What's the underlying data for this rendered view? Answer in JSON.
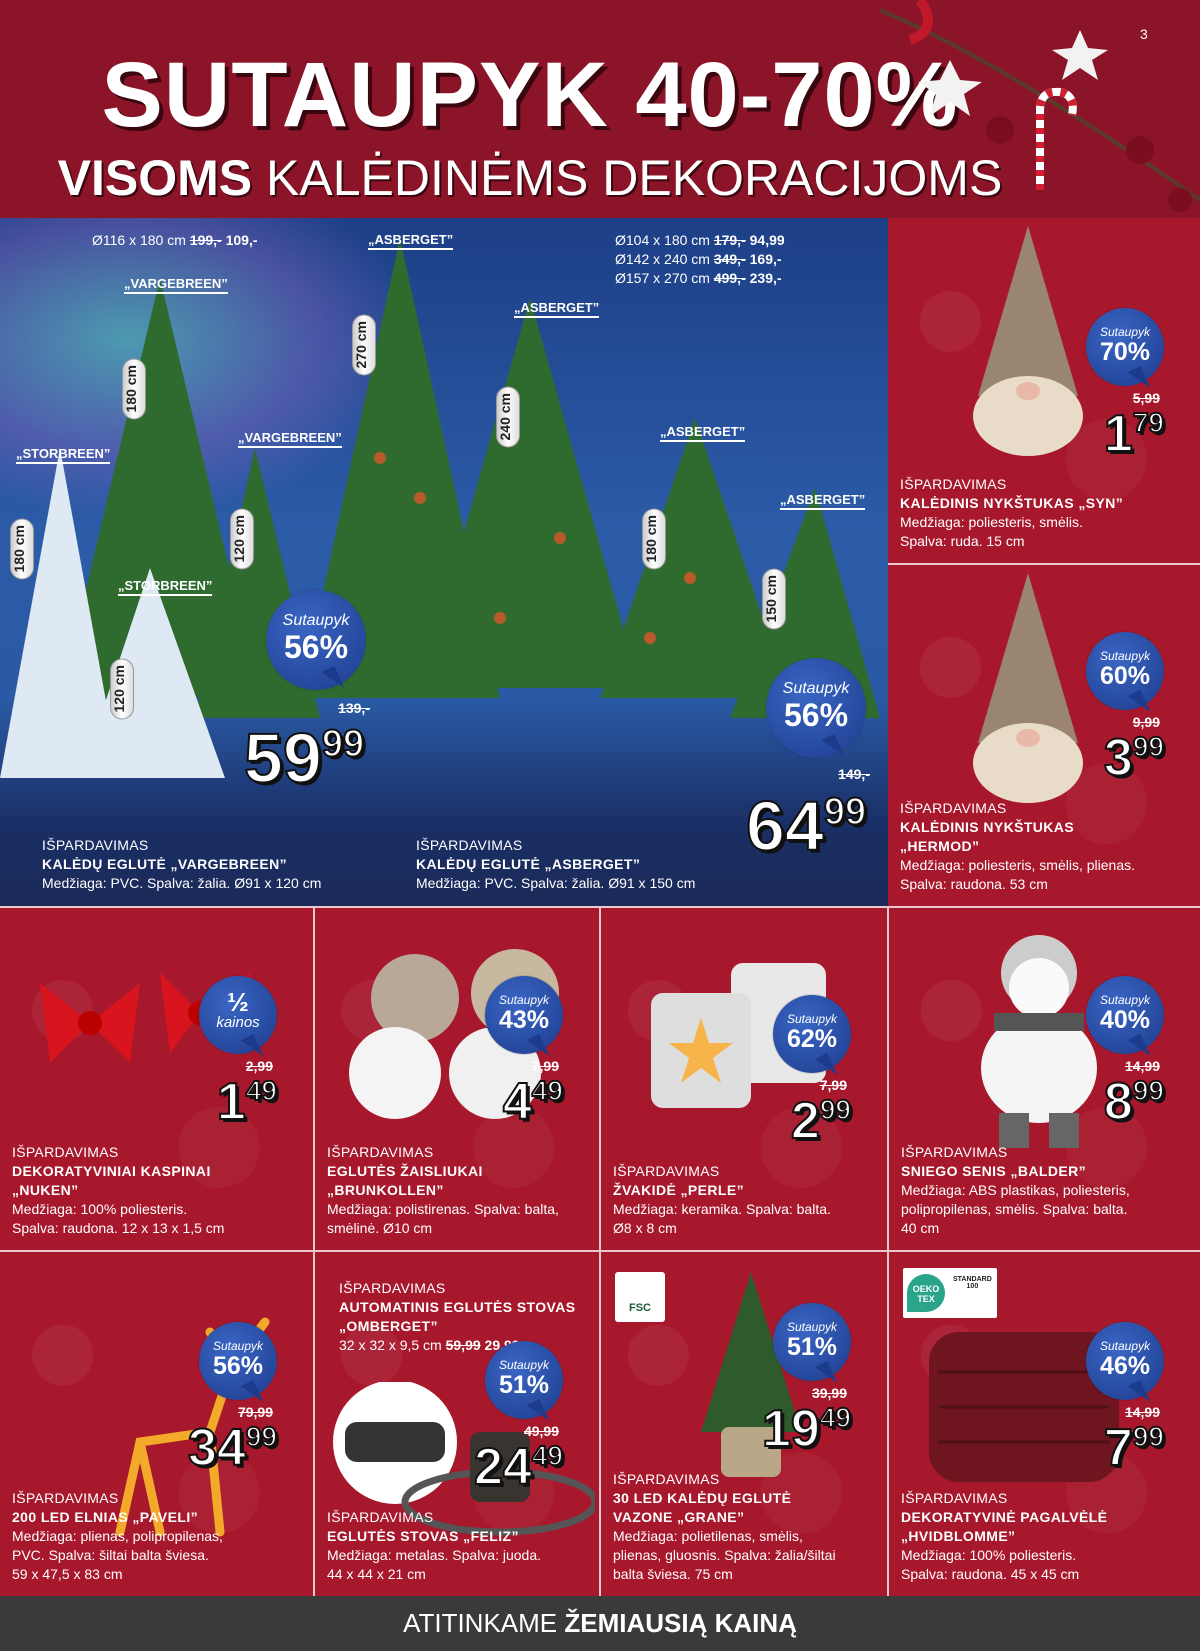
{
  "page_number": "3",
  "header": {
    "title": "SUTAUPYK 40-70%",
    "subtitle_bold": "VISOMS",
    "subtitle_rest": " KALĖDINĖMS DEKORACIJOMS"
  },
  "colors": {
    "header": "#8c1428",
    "background": "#a8182c",
    "badge": "#1d3b8c",
    "footer": "#3a3a3a"
  },
  "trees": {
    "labels": [
      "„VARGEBREEN”",
      "„STORBREEN”",
      "„VARGEBREEN”",
      "„STORBREEN”",
      "„ASBERGET”",
      "„ASBERGET”",
      "„ASBERGET”",
      "„ASBERGET”"
    ],
    "heights": [
      "180 cm",
      "180 cm",
      "120 cm",
      "120 cm",
      "270 cm",
      "240 cm",
      "180 cm",
      "150 cm"
    ],
    "dim_left": {
      "size": "Ø116 x 180 cm",
      "old": "199,-",
      "new": "109,-"
    },
    "dim_right": [
      {
        "size": "Ø104 x 180 cm",
        "old": "179,-",
        "new": "94,99"
      },
      {
        "size": "Ø142 x 240 cm",
        "old": "349,-",
        "new": "169,-"
      },
      {
        "size": "Ø157 x 270 cm",
        "old": "499,-",
        "new": "239,-"
      }
    ],
    "products": [
      {
        "label": "IŠPARDAVIMAS",
        "title": "KALĖDŲ EGLUTĖ „VARGEBREEN”",
        "desc": "Medžiaga: PVC. Spalva: žalia. Ø91 x 120 cm",
        "badge_top": "Sutaupyk",
        "badge_value": "56%",
        "old_price": "139,-",
        "price_int": "59",
        "price_dec": "99"
      },
      {
        "label": "IŠPARDAVIMAS",
        "title": "KALĖDŲ EGLUTĖ „ASBERGET”",
        "desc": "Medžiaga: PVC. Spalva: žalia. Ø91 x 150 cm",
        "badge_top": "Sutaupyk",
        "badge_value": "56%",
        "old_price": "149,-",
        "price_int": "64",
        "price_dec": "99"
      }
    ]
  },
  "products": [
    {
      "id": "syn",
      "label": "IŠPARDAVIMAS",
      "title": [
        "KALĖDINIS NYKŠTUKAS „SYN”"
      ],
      "desc": [
        "Medžiaga: poliesteris, smėlis.",
        "Spalva: ruda. 15 cm"
      ],
      "badge_top": "Sutaupyk",
      "badge_value": "70%",
      "old_price": "5,99",
      "price_int": "1",
      "price_dec": "79",
      "icon": "gnome-icon"
    },
    {
      "id": "hermod",
      "label": "IŠPARDAVIMAS",
      "title": [
        "KALĖDINIS NYKŠTUKAS",
        "„HERMOD”"
      ],
      "desc": [
        "Medžiaga: poliesteris, smėlis, plienas.",
        "Spalva: raudona. 53 cm"
      ],
      "badge_top": "Sutaupyk",
      "badge_value": "60%",
      "old_price": "9,99",
      "price_int": "3",
      "price_dec": "99",
      "icon": "gnome-icon"
    },
    {
      "id": "nuken",
      "label": "IŠPARDAVIMAS",
      "title": [
        "DEKORATYVINIAI KASPINAI",
        "„NUKEN”"
      ],
      "desc": [
        "Medžiaga: 100% poliesteris.",
        "Spalva: raudona. 12 x 13 x 1,5 cm"
      ],
      "badge_top": "kainos",
      "badge_value": "½",
      "old_price": "2,99",
      "price_int": "1",
      "price_dec": "49",
      "icon": "bow-icon"
    },
    {
      "id": "brunkollen",
      "label": "IŠPARDAVIMAS",
      "title": [
        "EGLUTĖS ŽAISLIUKAI",
        "„BRUNKOLLEN”"
      ],
      "desc": [
        "Medžiaga: polistirenas. Spalva: balta,",
        "smėlinė. Ø10 cm"
      ],
      "badge_top": "Sutaupyk",
      "badge_value": "43%",
      "old_price": "7,99",
      "price_int": "4",
      "price_dec": "49",
      "icon": "ornament-icon"
    },
    {
      "id": "perle",
      "label": "IŠPARDAVIMAS",
      "title": [
        "ŽVAKIDĖ „PERLE”"
      ],
      "desc": [
        "Medžiaga: keramika. Spalva: balta.",
        "Ø8 x 8 cm"
      ],
      "badge_top": "Sutaupyk",
      "badge_value": "62%",
      "old_price": "7,99",
      "price_int": "2",
      "price_dec": "99",
      "icon": "candle-holder-icon"
    },
    {
      "id": "balder",
      "label": "IŠPARDAVIMAS",
      "title": [
        "SNIEGO SENIS „BALDER”"
      ],
      "desc": [
        "Medžiaga: ABS plastikas, poliesteris,",
        "polipropilenas, smėlis. Spalva: balta.",
        "40 cm"
      ],
      "badge_top": "Sutaupyk",
      "badge_value": "40%",
      "old_price": "14,99",
      "price_int": "8",
      "price_dec": "99",
      "icon": "snowman-icon"
    },
    {
      "id": "paveli",
      "label": "IŠPARDAVIMAS",
      "title": [
        "200 LED ELNIAS „PAVELI”"
      ],
      "desc": [
        "Medžiaga: plienas, polipropilenas,",
        "PVC. Spalva: šiltai balta šviesa.",
        "59 x 47,5 x 83 cm"
      ],
      "badge_top": "Sutaupyk",
      "badge_value": "56%",
      "old_price": "79,99",
      "price_int": "34",
      "price_dec": "99",
      "icon": "reindeer-icon"
    },
    {
      "id": "feliz",
      "label": "IŠPARDAVIMAS",
      "title": [
        "EGLUTĖS STOVAS „FELIZ”"
      ],
      "desc": [
        "Medžiaga: metalas. Spalva: juoda.",
        "44 x 44 x 21 cm"
      ],
      "badge_top": "Sutaupyk",
      "badge_value": "51%",
      "old_price": "49,99",
      "price_int": "24",
      "price_dec": "49",
      "icon": "tree-stand-icon",
      "extra": {
        "label": "IŠPARDAVIMAS",
        "title": [
          "AUTOMATINIS EGLUTĖS STOVAS",
          "„OMBERGET”"
        ],
        "size": "32 x 32 x 9,5 cm",
        "old": "59,99",
        "new": "29,99"
      }
    },
    {
      "id": "grane",
      "label": "IŠPARDAVIMAS",
      "title": [
        "30 LED KALĖDŲ EGLUTĖ",
        "VAZONE „GRANE”"
      ],
      "desc": [
        "Medžiaga: polietilenas, smėlis,",
        "plienas, gluosnis. Spalva: žalia/šiltai",
        "balta šviesa. 75 cm"
      ],
      "badge_top": "Sutaupyk",
      "badge_value": "51%",
      "old_price": "39,99",
      "price_int": "19",
      "price_dec": "49",
      "icon": "potted-tree-icon",
      "logo": "FSC"
    },
    {
      "id": "hvidblomme",
      "label": "IŠPARDAVIMAS",
      "title": [
        "DEKORATYVINĖ PAGALVĖLĖ",
        "„HVIDBLOMME”"
      ],
      "desc": [
        "Medžiaga: 100% poliesteris.",
        "Spalva: raudona. 45 x 45 cm"
      ],
      "badge_top": "Sutaupyk",
      "badge_value": "46%",
      "old_price": "14,99",
      "price_int": "7",
      "price_dec": "99",
      "icon": "pillow-icon",
      "logo": "OEKO TEX STANDARD 100"
    }
  ],
  "footer": {
    "normal": "ATITINKAME ",
    "bold": "ŽEMIAUSIĄ KAINĄ"
  }
}
